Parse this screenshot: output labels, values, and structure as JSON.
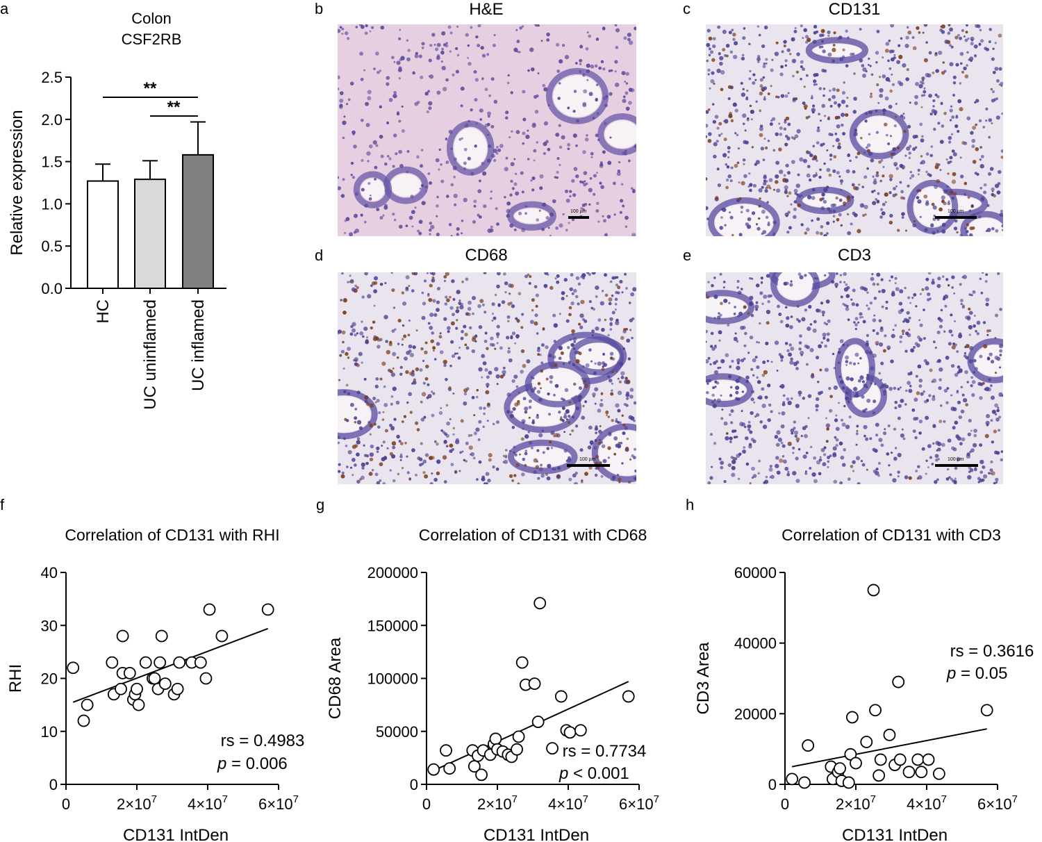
{
  "panels": {
    "a": {
      "label": "a"
    },
    "b": {
      "label": "b",
      "title": "H&E",
      "scale_text": "100 µm"
    },
    "c": {
      "label": "c",
      "title": "CD131",
      "scale_text": "100 µm"
    },
    "d": {
      "label": "d",
      "title": "CD68",
      "scale_text": "100 µm"
    },
    "e": {
      "label": "e",
      "title": "CD3",
      "scale_text": "100 µm"
    },
    "f": {
      "label": "f"
    },
    "g": {
      "label": "g"
    },
    "h": {
      "label": "h"
    }
  },
  "colors": {
    "he_bg": "#e6cfe0",
    "he_cell": "#5a4a9a",
    "ihc_bg": "#eae4ee",
    "ihc_cell": "#4b3f92",
    "ihc_brown": "#7a3e1e",
    "bar_hc": "#ffffff",
    "bar_unin": "#d9d9d9",
    "bar_inf": "#808080"
  },
  "chart_data": [
    {
      "type": "bar",
      "title": "Colon",
      "subtitle": "CSF2RB",
      "categories": [
        "HC",
        "UC uninflamed",
        "UC inflamed"
      ],
      "values": [
        1.27,
        1.29,
        1.58
      ],
      "errors": [
        0.2,
        0.22,
        0.39
      ],
      "bar_colors": [
        "#ffffff",
        "#d9d9d9",
        "#808080"
      ],
      "xlabel": "",
      "ylabel": "Relative expression",
      "ylim": [
        0,
        2.5
      ],
      "yticks": [
        "0.0",
        "0.5",
        "1.0",
        "1.5",
        "2.0",
        "2.5"
      ],
      "significance": [
        {
          "from": "HC",
          "to": "UC inflamed",
          "label": "**"
        },
        {
          "from": "UC uninflamed",
          "to": "UC inflamed",
          "label": "**"
        }
      ]
    },
    {
      "type": "scatter",
      "title": "Correlation of CD131 with RHI",
      "xlabel": "CD131 IntDen",
      "ylabel": "RHI",
      "xlim": [
        0,
        60000000
      ],
      "ylim": [
        0,
        40
      ],
      "xticks": [
        "0",
        "2×10",
        "4×10",
        "6×10"
      ],
      "xtick_exp": "7",
      "yticks": [
        "0",
        "10",
        "20",
        "30",
        "40"
      ],
      "stats": {
        "rs": "rs = 0.4983",
        "p_label": "p",
        "p_value": " = 0.006"
      },
      "fit": {
        "x": [
          2000000,
          57000000
        ],
        "y": [
          15.5,
          29.4
        ]
      },
      "points": [
        {
          "x": 2000000,
          "y": 22
        },
        {
          "x": 5000000,
          "y": 12
        },
        {
          "x": 6000000,
          "y": 15
        },
        {
          "x": 13000000,
          "y": 23
        },
        {
          "x": 13500000,
          "y": 17
        },
        {
          "x": 15500000,
          "y": 18
        },
        {
          "x": 16000000,
          "y": 28
        },
        {
          "x": 16000000,
          "y": 21
        },
        {
          "x": 18000000,
          "y": 21
        },
        {
          "x": 19000000,
          "y": 16
        },
        {
          "x": 19500000,
          "y": 17
        },
        {
          "x": 20000000,
          "y": 18
        },
        {
          "x": 20500000,
          "y": 15
        },
        {
          "x": 22500000,
          "y": 23
        },
        {
          "x": 24500000,
          "y": 20
        },
        {
          "x": 25000000,
          "y": 20
        },
        {
          "x": 26000000,
          "y": 18
        },
        {
          "x": 26500000,
          "y": 23
        },
        {
          "x": 27000000,
          "y": 28
        },
        {
          "x": 28000000,
          "y": 19
        },
        {
          "x": 30500000,
          "y": 17
        },
        {
          "x": 31500000,
          "y": 18
        },
        {
          "x": 32000000,
          "y": 23
        },
        {
          "x": 35500000,
          "y": 23
        },
        {
          "x": 38000000,
          "y": 23
        },
        {
          "x": 39500000,
          "y": 20
        },
        {
          "x": 40500000,
          "y": 33
        },
        {
          "x": 44000000,
          "y": 28
        },
        {
          "x": 57000000,
          "y": 33
        }
      ]
    },
    {
      "type": "scatter",
      "title": "Correlation of CD131 with CD68",
      "xlabel": "CD131 IntDen",
      "ylabel": "CD68 Area",
      "xlim": [
        0,
        60000000
      ],
      "ylim": [
        0,
        200000
      ],
      "xticks": [
        "0",
        "2×10",
        "4×10",
        "6×10"
      ],
      "xtick_exp": "7",
      "yticks": [
        "0",
        "50000",
        "100000",
        "150000",
        "200000"
      ],
      "stats": {
        "rs": "rs = 0.7734",
        "p_label": "p",
        "p_value": " < 0.001"
      },
      "fit": {
        "x": [
          2000000,
          57000000
        ],
        "y": [
          13000,
          97000
        ]
      },
      "points": [
        {
          "x": 2000000,
          "y": 14000
        },
        {
          "x": 5500000,
          "y": 32000
        },
        {
          "x": 6500000,
          "y": 15000
        },
        {
          "x": 13000000,
          "y": 32000
        },
        {
          "x": 13500000,
          "y": 17000
        },
        {
          "x": 14500000,
          "y": 27000
        },
        {
          "x": 15500000,
          "y": 9000
        },
        {
          "x": 16000000,
          "y": 32000
        },
        {
          "x": 18000000,
          "y": 28000
        },
        {
          "x": 19000000,
          "y": 38000
        },
        {
          "x": 19500000,
          "y": 43000
        },
        {
          "x": 20000000,
          "y": 33000
        },
        {
          "x": 21500000,
          "y": 31000
        },
        {
          "x": 23000000,
          "y": 28000
        },
        {
          "x": 24000000,
          "y": 26000
        },
        {
          "x": 25500000,
          "y": 33000
        },
        {
          "x": 26000000,
          "y": 45000
        },
        {
          "x": 27000000,
          "y": 115000
        },
        {
          "x": 28000000,
          "y": 94000
        },
        {
          "x": 30500000,
          "y": 95000
        },
        {
          "x": 31500000,
          "y": 59000
        },
        {
          "x": 32000000,
          "y": 171000
        },
        {
          "x": 35500000,
          "y": 34000
        },
        {
          "x": 38000000,
          "y": 83000
        },
        {
          "x": 39500000,
          "y": 51000
        },
        {
          "x": 40500000,
          "y": 49000
        },
        {
          "x": 43500000,
          "y": 51000
        },
        {
          "x": 57000000,
          "y": 83000
        }
      ]
    },
    {
      "type": "scatter",
      "title": "Correlation of CD131 with CD3",
      "xlabel": "CD131 IntDen",
      "ylabel": "CD3 Area",
      "xlim": [
        0,
        60000000
      ],
      "ylim": [
        0,
        60000
      ],
      "xticks": [
        "0",
        "2×10",
        "4×10",
        "6×10"
      ],
      "xtick_exp": "7",
      "yticks": [
        "0",
        "20000",
        "40000",
        "60000"
      ],
      "stats": {
        "rs": "rs = 0.3616",
        "p_label": "p",
        "p_value": " = 0.05"
      },
      "fit": {
        "x": [
          2000000,
          57000000
        ],
        "y": [
          5000,
          15700
        ]
      },
      "points": [
        {
          "x": 2000000,
          "y": 1500
        },
        {
          "x": 5500000,
          "y": 500
        },
        {
          "x": 6500000,
          "y": 11000
        },
        {
          "x": 13000000,
          "y": 5000
        },
        {
          "x": 13500000,
          "y": 1500
        },
        {
          "x": 15000000,
          "y": 3500
        },
        {
          "x": 15500000,
          "y": 4500
        },
        {
          "x": 16000000,
          "y": 1000
        },
        {
          "x": 18000000,
          "y": 500
        },
        {
          "x": 18500000,
          "y": 8500
        },
        {
          "x": 19000000,
          "y": 19000
        },
        {
          "x": 20000000,
          "y": 6000
        },
        {
          "x": 23000000,
          "y": 12000
        },
        {
          "x": 25500000,
          "y": 21000
        },
        {
          "x": 25000000,
          "y": 55000
        },
        {
          "x": 26500000,
          "y": 2500
        },
        {
          "x": 27000000,
          "y": 7000
        },
        {
          "x": 29500000,
          "y": 14000
        },
        {
          "x": 31000000,
          "y": 5500
        },
        {
          "x": 32500000,
          "y": 7000
        },
        {
          "x": 32000000,
          "y": 29000
        },
        {
          "x": 35000000,
          "y": 3500
        },
        {
          "x": 37500000,
          "y": 7000
        },
        {
          "x": 38500000,
          "y": 3500
        },
        {
          "x": 40500000,
          "y": 7000
        },
        {
          "x": 43500000,
          "y": 3000
        },
        {
          "x": 57000000,
          "y": 21000
        }
      ]
    }
  ]
}
